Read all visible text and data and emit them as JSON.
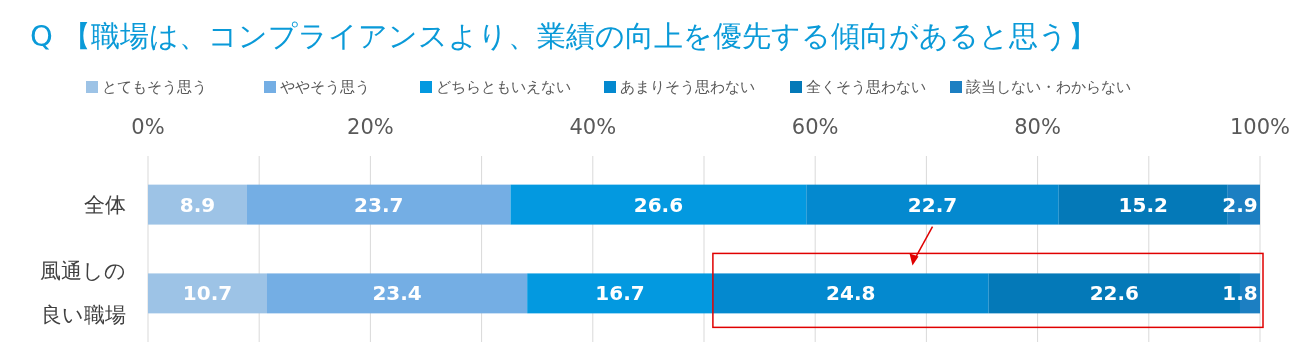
{
  "chart_data": {
    "type": "bar",
    "orientation": "horizontal",
    "stacked": true,
    "title": "Q 【職場は、コンプライアンスより、業績の向上を優先する傾向があると思う】",
    "categories": [
      "全体",
      "風通しの良い職場"
    ],
    "series": [
      {
        "name": "とてもそう思う",
        "color": "#9dc3e6",
        "values": [
          8.9,
          10.7
        ]
      },
      {
        "name": "ややそう思う",
        "color": "#74aee4",
        "values": [
          23.7,
          23.4
        ]
      },
      {
        "name": "どちらともいえない",
        "color": "#0399e0",
        "values": [
          26.6,
          16.7
        ]
      },
      {
        "name": "あまりそう思わない",
        "color": "#0489cf",
        "values": [
          22.7,
          24.8
        ]
      },
      {
        "name": "全くそう思わない",
        "color": "#0479b8",
        "values": [
          15.2,
          22.6
        ]
      },
      {
        "name": "該当しない・わからない",
        "color": "#1c7fc2",
        "values": [
          2.9,
          1.8
        ]
      }
    ],
    "xlim": [
      0,
      100
    ],
    "xticks": [
      {
        "value": 0,
        "label": "0%"
      },
      {
        "value": 10,
        "label": null
      },
      {
        "value": 20,
        "label": "20%"
      },
      {
        "value": 30,
        "label": null
      },
      {
        "value": 40,
        "label": "40%"
      },
      {
        "value": 50,
        "label": null
      },
      {
        "value": 60,
        "label": "60%"
      },
      {
        "value": 70,
        "label": null
      },
      {
        "value": 80,
        "label": "80%"
      },
      {
        "value": 90,
        "label": null
      },
      {
        "value": 100,
        "label": "100%"
      }
    ],
    "grid": "x",
    "legend": "top",
    "data_labels": true
  }
}
